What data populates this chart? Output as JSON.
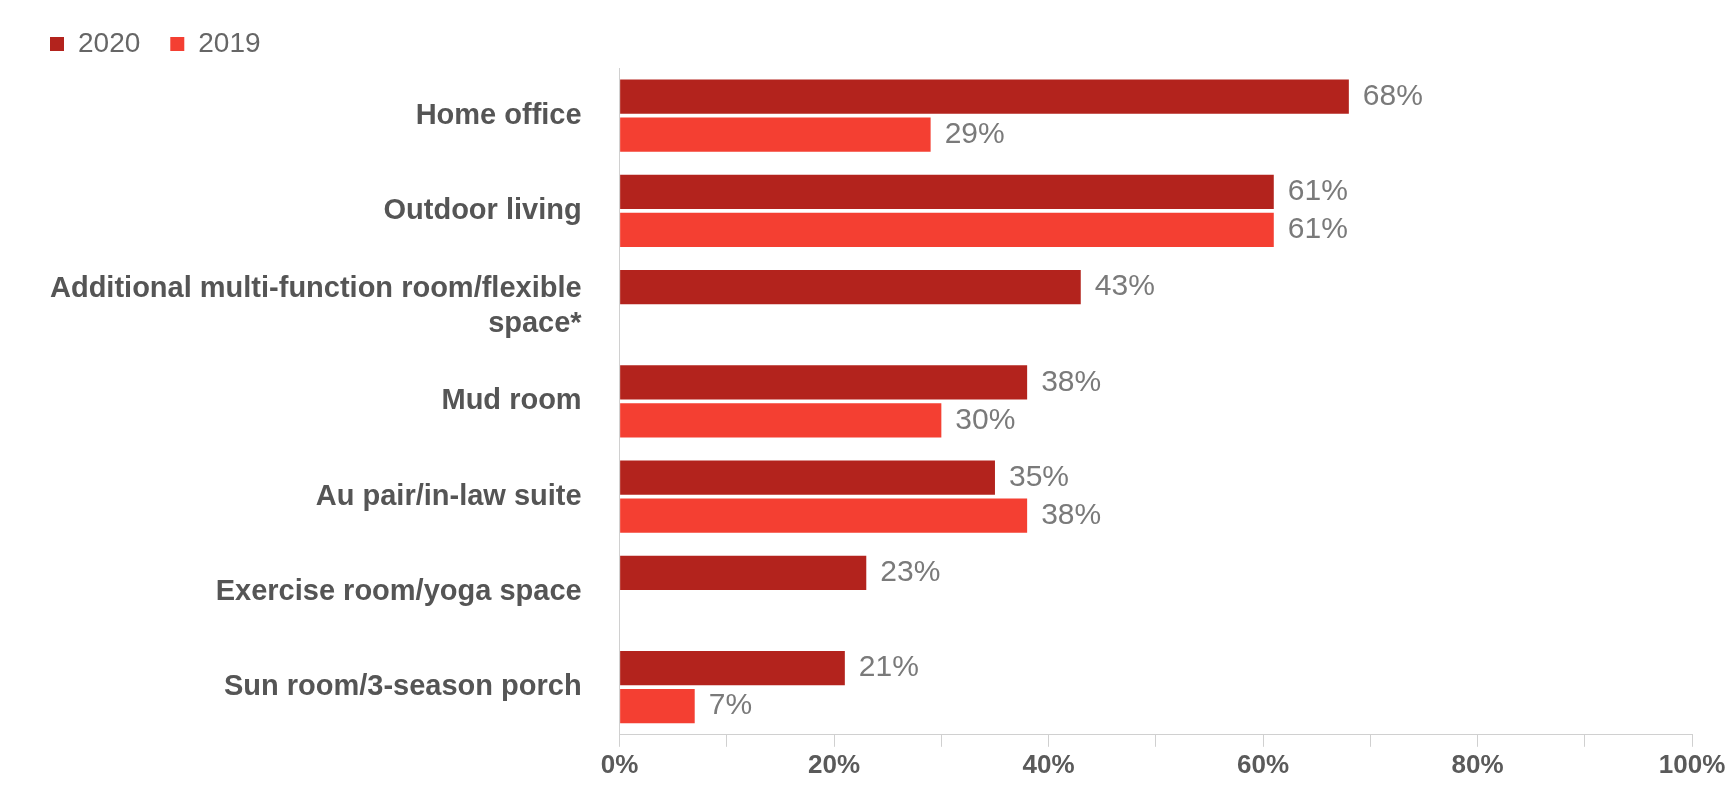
{
  "chart_data": {
    "type": "bar",
    "orientation": "horizontal",
    "categories": [
      "Home office",
      "Outdoor living",
      "Additional multi-function room/flexible space*",
      "Mud room",
      "Au pair/in-law suite",
      "Exercise room/yoga space",
      "Sun room/3-season porch"
    ],
    "series": [
      {
        "name": "2020",
        "color": "#b3231d",
        "values": [
          68,
          61,
          43,
          38,
          35,
          23,
          21
        ],
        "value_labels": [
          "68%",
          "61%",
          "43%",
          "38%",
          "35%",
          "23%",
          "21%"
        ]
      },
      {
        "name": "2019",
        "color": "#f43f32",
        "values": [
          29,
          61,
          null,
          30,
          38,
          null,
          7
        ],
        "value_labels": [
          "29%",
          "61%",
          null,
          "30%",
          "38%",
          null,
          "7%"
        ]
      }
    ],
    "xlim": [
      0,
      100
    ],
    "xticks": [
      {
        "value": 0,
        "label": "0%"
      },
      {
        "value": 10,
        "label": null
      },
      {
        "value": 20,
        "label": "20%"
      },
      {
        "value": 30,
        "label": null
      },
      {
        "value": 40,
        "label": "40%"
      },
      {
        "value": 50,
        "label": null
      },
      {
        "value": 60,
        "label": "60%"
      },
      {
        "value": 70,
        "label": null
      },
      {
        "value": 80,
        "label": "80%"
      },
      {
        "value": 90,
        "label": null
      },
      {
        "value": 100,
        "label": "100%"
      }
    ],
    "grid": false,
    "legend": "top left"
  }
}
